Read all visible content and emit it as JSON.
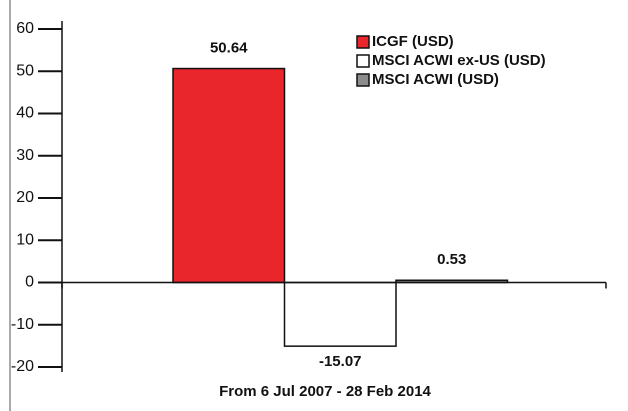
{
  "chart_data": {
    "type": "bar",
    "series": [
      {
        "name": "ICGF (USD)",
        "color": "#e8262b",
        "values": [
          50.64
        ]
      },
      {
        "name": "MSCI ACWI ex-US (USD)",
        "color": "#ffffff",
        "values": [
          -15.07
        ]
      },
      {
        "name": "MSCI ACWI (USD)",
        "color": "#8c8c8c",
        "values": [
          0.53
        ]
      }
    ],
    "ylim": [
      -20,
      60
    ],
    "yticks": [
      -20,
      -10,
      0,
      10,
      20,
      30,
      40,
      50,
      60
    ],
    "xlabel": "From 6 Jul 2007 - 28 Feb 2014"
  }
}
